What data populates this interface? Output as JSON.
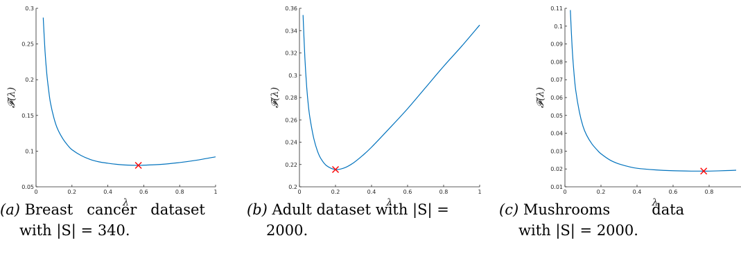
{
  "chart_data": [
    {
      "type": "line",
      "xlabel": "λ",
      "ylabel": "𝓕(λ)",
      "xlim": [
        0,
        1
      ],
      "ylim": [
        0.05,
        0.3
      ],
      "x_ticks": [
        "0",
        "0.2",
        "0.4",
        "0.6",
        "0.8",
        "1"
      ],
      "y_ticks": [
        "0.05",
        "0.1",
        "0.15",
        "0.2",
        "0.25",
        "0.3"
      ],
      "series": [
        {
          "color": "#0072BD",
          "x": [
            0.04,
            0.05,
            0.06,
            0.07,
            0.08,
            0.1,
            0.12,
            0.15,
            0.18,
            0.2,
            0.25,
            0.3,
            0.35,
            0.4,
            0.45,
            0.5,
            0.57,
            0.6,
            0.7,
            0.8,
            0.9,
            1.0
          ],
          "y": [
            0.287,
            0.24,
            0.208,
            0.186,
            0.168,
            0.146,
            0.131,
            0.117,
            0.107,
            0.102,
            0.094,
            0.0885,
            0.085,
            0.083,
            0.0815,
            0.0805,
            0.08,
            0.0803,
            0.0815,
            0.084,
            0.0875,
            0.092
          ]
        }
      ],
      "marker": {
        "x": 0.57,
        "y": 0.08,
        "symbol": "x",
        "color": "#ff0000"
      },
      "caption": {
        "tag": "(a)",
        "line1": " Breast   cancer   dataset",
        "line2": "with |S| = 340."
      }
    },
    {
      "type": "line",
      "xlabel": "λ",
      "ylabel": "𝓕(λ)",
      "xlim": [
        0,
        1
      ],
      "ylim": [
        0.2,
        0.36
      ],
      "x_ticks": [
        "0",
        "0.2",
        "0.4",
        "0.6",
        "0.8",
        "1"
      ],
      "y_ticks": [
        "0.2",
        "0.22",
        "0.24",
        "0.26",
        "0.28",
        "0.3",
        "0.32",
        "0.34",
        "0.36"
      ],
      "series": [
        {
          "color": "#0072BD",
          "x": [
            0.02,
            0.03,
            0.04,
            0.05,
            0.06,
            0.08,
            0.1,
            0.12,
            0.15,
            0.2,
            0.25,
            0.3,
            0.35,
            0.4,
            0.5,
            0.6,
            0.7,
            0.8,
            0.9,
            1.0
          ],
          "y": [
            0.354,
            0.316,
            0.29,
            0.272,
            0.26,
            0.243,
            0.232,
            0.225,
            0.219,
            0.2155,
            0.217,
            0.2215,
            0.228,
            0.2355,
            0.2525,
            0.27,
            0.289,
            0.308,
            0.326,
            0.345
          ]
        }
      ],
      "marker": {
        "x": 0.2,
        "y": 0.2155,
        "symbol": "x",
        "color": "#ff0000"
      },
      "caption": {
        "tag": "(b)",
        "line1": " Adult dataset with |S| =",
        "line2": "2000."
      }
    },
    {
      "type": "line",
      "xlabel": "λ",
      "ylabel": "𝓕(λ)",
      "xlim": [
        0,
        1
      ],
      "ylim": [
        0.01,
        0.11
      ],
      "x_ticks": [
        "0",
        "0.2",
        "0.4",
        "0.6",
        "0.8"
      ],
      "y_ticks": [
        "0.01",
        "0.02",
        "0.03",
        "0.04",
        "0.05",
        "0.06",
        "0.07",
        "0.08",
        "0.09",
        "0.1",
        "0.11"
      ],
      "series": [
        {
          "color": "#0072BD",
          "x": [
            0.03,
            0.04,
            0.05,
            0.06,
            0.08,
            0.1,
            0.12,
            0.15,
            0.18,
            0.2,
            0.25,
            0.3,
            0.35,
            0.4,
            0.5,
            0.6,
            0.7,
            0.77,
            0.8,
            0.9,
            0.95
          ],
          "y": [
            0.109,
            0.088,
            0.074,
            0.064,
            0.052,
            0.044,
            0.039,
            0.034,
            0.0305,
            0.0285,
            0.025,
            0.0228,
            0.0214,
            0.0204,
            0.0195,
            0.019,
            0.0188,
            0.0188,
            0.0188,
            0.0191,
            0.0193
          ]
        }
      ],
      "marker": {
        "x": 0.77,
        "y": 0.0188,
        "symbol": "x",
        "color": "#ff0000"
      },
      "caption": {
        "tag": "(c)",
        "line1": " Mushrooms         data",
        "line2": "with |S| = 2000."
      }
    }
  ]
}
